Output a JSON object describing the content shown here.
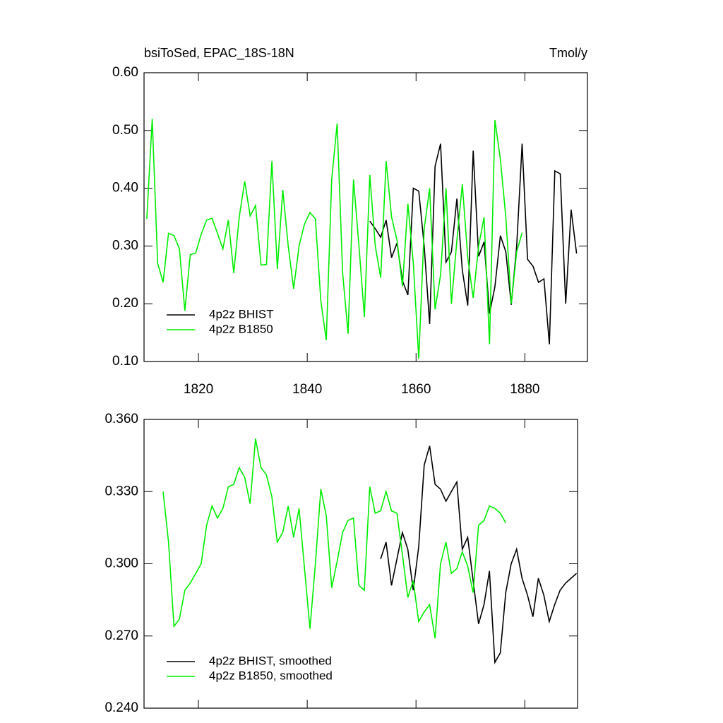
{
  "chart_data": [
    {
      "type": "line",
      "title": "bsiToSed, EPAC_18S-18N",
      "units": "Tmol/y",
      "xlim": [
        1810,
        1891.5
      ],
      "ylim": [
        0.1,
        0.6
      ],
      "xticks": [
        1820,
        1840,
        1860,
        1880
      ],
      "show_xtick_labels": true,
      "yticks": [
        {
          "value": 0.1,
          "label": "0.10"
        },
        {
          "value": 0.2,
          "label": "0.20"
        },
        {
          "value": 0.3,
          "label": "0.30"
        },
        {
          "value": 0.4,
          "label": "0.40"
        },
        {
          "value": 0.5,
          "label": "0.50"
        },
        {
          "value": 0.6,
          "label": "0.60"
        }
      ],
      "legend": "lower left",
      "series": [
        {
          "name": "4p2z BHIST",
          "color": "#000000",
          "x": [
            1851.5,
            1852.5,
            1853.5,
            1854.5,
            1855.5,
            1856.5,
            1857.5,
            1858.5,
            1859.5,
            1860.5,
            1861.5,
            1862.5,
            1863.5,
            1864.5,
            1865.5,
            1866.5,
            1867.5,
            1868.5,
            1869.5,
            1870.5,
            1871.5,
            1872.5,
            1873.5,
            1874.5,
            1875.5,
            1876.5,
            1877.5,
            1878.5,
            1879.5,
            1880.5,
            1881.5,
            1882.5,
            1883.5,
            1884.5,
            1885.5,
            1886.5,
            1887.5,
            1888.5,
            1889.5
          ],
          "values": [
            0.343,
            0.33,
            0.315,
            0.345,
            0.28,
            0.305,
            0.24,
            0.215,
            0.4,
            0.395,
            0.3,
            0.165,
            0.438,
            0.477,
            0.272,
            0.29,
            0.382,
            0.258,
            0.197,
            0.465,
            0.282,
            0.307,
            0.183,
            0.23,
            0.318,
            0.29,
            0.198,
            0.3,
            0.477,
            0.277,
            0.265,
            0.237,
            0.243,
            0.13,
            0.43,
            0.425,
            0.2,
            0.363,
            0.287
          ]
        },
        {
          "name": "4p2z B1850",
          "color": "#00ee00",
          "x": [
            1810.5,
            1811.5,
            1812.5,
            1813.5,
            1814.5,
            1815.5,
            1816.5,
            1817.5,
            1818.5,
            1819.5,
            1820.5,
            1821.5,
            1822.5,
            1823.5,
            1824.5,
            1825.5,
            1826.5,
            1827.5,
            1828.5,
            1829.5,
            1830.5,
            1831.5,
            1832.5,
            1833.5,
            1834.5,
            1835.5,
            1836.5,
            1837.5,
            1838.5,
            1839.5,
            1840.5,
            1841.5,
            1842.5,
            1843.5,
            1844.5,
            1845.5,
            1846.5,
            1847.5,
            1848.5,
            1849.5,
            1850.5,
            1851.5,
            1852.5,
            1853.5,
            1854.5,
            1855.5,
            1856.5,
            1857.5,
            1858.5,
            1859.5,
            1860.5,
            1861.5,
            1862.5,
            1863.5,
            1864.5,
            1865.5,
            1866.5,
            1867.5,
            1868.5,
            1869.5,
            1870.5,
            1871.5,
            1872.5,
            1873.5,
            1874.5,
            1875.5,
            1876.5,
            1877.5,
            1878.5,
            1879.5
          ],
          "values": [
            0.347,
            0.52,
            0.27,
            0.237,
            0.322,
            0.318,
            0.295,
            0.188,
            0.285,
            0.288,
            0.32,
            0.345,
            0.348,
            0.322,
            0.295,
            0.345,
            0.253,
            0.35,
            0.412,
            0.352,
            0.37,
            0.267,
            0.268,
            0.447,
            0.26,
            0.397,
            0.3,
            0.226,
            0.3,
            0.338,
            0.358,
            0.347,
            0.205,
            0.137,
            0.415,
            0.512,
            0.253,
            0.148,
            0.415,
            0.3,
            0.177,
            0.423,
            0.3,
            0.245,
            0.447,
            0.35,
            0.31,
            0.23,
            0.373,
            0.27,
            0.105,
            0.33,
            0.4,
            0.19,
            0.25,
            0.4,
            0.2,
            0.31,
            0.407,
            0.28,
            0.21,
            0.3,
            0.35,
            0.13,
            0.518,
            0.45,
            0.35,
            0.2,
            0.29,
            0.323
          ]
        }
      ]
    },
    {
      "type": "line",
      "xlim": [
        1810,
        1889.7
      ],
      "ylim": [
        0.24,
        0.36
      ],
      "xticks": [
        1820,
        1840,
        1860,
        1880
      ],
      "show_xtick_labels": false,
      "yticks": [
        {
          "value": 0.24,
          "label": "0.240"
        },
        {
          "value": 0.27,
          "label": "0.270"
        },
        {
          "value": 0.3,
          "label": "0.300"
        },
        {
          "value": 0.33,
          "label": "0.330"
        },
        {
          "value": 0.36,
          "label": "0.360"
        }
      ],
      "legend": "lower left",
      "series": [
        {
          "name": "4p2z BHIST, smoothed",
          "color": "#000000",
          "x": [
            1853.5,
            1854.5,
            1855.5,
            1856.5,
            1857.5,
            1858.5,
            1859.5,
            1860.5,
            1861.5,
            1862.5,
            1863.5,
            1864.5,
            1865.5,
            1866.5,
            1867.5,
            1868.5,
            1869.5,
            1870.5,
            1871.5,
            1872.5,
            1873.5,
            1874.5,
            1875.5,
            1876.5,
            1877.5,
            1878.5,
            1879.5,
            1880.5,
            1881.5,
            1882.5,
            1883.5,
            1884.5,
            1885.5,
            1886.5,
            1887.5,
            1888.5,
            1889.5
          ],
          "values": [
            0.302,
            0.309,
            0.291,
            0.302,
            0.313,
            0.306,
            0.289,
            0.307,
            0.341,
            0.349,
            0.333,
            0.331,
            0.326,
            0.33,
            0.334,
            0.306,
            0.311,
            0.293,
            0.275,
            0.283,
            0.297,
            0.259,
            0.263,
            0.288,
            0.3,
            0.306,
            0.294,
            0.287,
            0.278,
            0.294,
            0.287,
            0.276,
            0.283,
            0.289,
            0.292,
            0.294,
            0.296
          ]
        },
        {
          "name": "4p2z B1850, smoothed",
          "color": "#00ee00",
          "x": [
            1813.5,
            1814.5,
            1815.5,
            1816.5,
            1817.5,
            1818.5,
            1819.5,
            1820.5,
            1821.5,
            1822.5,
            1823.5,
            1824.5,
            1825.5,
            1826.5,
            1827.5,
            1828.5,
            1829.5,
            1830.5,
            1831.5,
            1832.5,
            1833.5,
            1834.5,
            1835.5,
            1836.5,
            1837.5,
            1838.5,
            1839.5,
            1840.5,
            1841.5,
            1842.5,
            1843.5,
            1844.5,
            1845.5,
            1846.5,
            1847.5,
            1848.5,
            1849.5,
            1850.5,
            1851.5,
            1852.5,
            1853.5,
            1854.5,
            1855.5,
            1856.5,
            1857.5,
            1858.5,
            1859.5,
            1860.5,
            1861.5,
            1862.5,
            1863.5,
            1864.5,
            1865.5,
            1866.5,
            1867.5,
            1868.5,
            1869.5,
            1870.5,
            1871.5,
            1872.5,
            1873.5,
            1874.5,
            1875.5,
            1876.5
          ],
          "values": [
            0.33,
            0.309,
            0.274,
            0.277,
            0.289,
            0.292,
            0.296,
            0.3,
            0.316,
            0.324,
            0.319,
            0.323,
            0.332,
            0.333,
            0.34,
            0.336,
            0.325,
            0.352,
            0.34,
            0.337,
            0.328,
            0.309,
            0.313,
            0.324,
            0.311,
            0.323,
            0.298,
            0.273,
            0.3,
            0.331,
            0.32,
            0.29,
            0.301,
            0.313,
            0.318,
            0.319,
            0.291,
            0.289,
            0.332,
            0.321,
            0.322,
            0.33,
            0.322,
            0.321,
            0.304,
            0.286,
            0.293,
            0.276,
            0.28,
            0.283,
            0.269,
            0.3,
            0.309,
            0.296,
            0.298,
            0.305,
            0.299,
            0.288,
            0.316,
            0.318,
            0.324,
            0.323,
            0.321,
            0.317
          ]
        }
      ]
    }
  ]
}
